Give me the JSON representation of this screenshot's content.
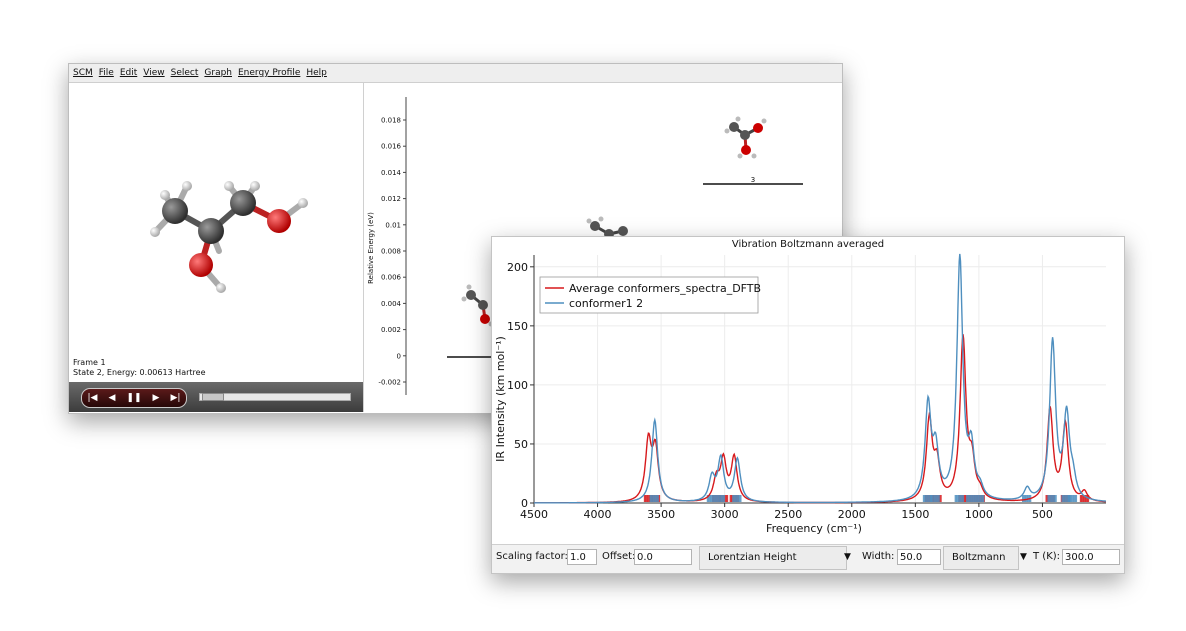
{
  "energy_window": {
    "menu": [
      "SCM",
      "File",
      "Edit",
      "View",
      "Select",
      "Graph",
      "Energy Profile",
      "Help"
    ],
    "frame_label": "Frame 1",
    "state_label": "State 2, Energy: 0.00613 Hartree",
    "player": {
      "first": "|◀",
      "prev": "◀",
      "pause": "❚❚",
      "next": "▶",
      "last": "▶|"
    },
    "profile": {
      "ylabel": "Relative Energy (eV)",
      "yticks": [
        "0.018",
        "0.016",
        "0.014",
        "0.012",
        "0.01",
        "0.008",
        "0.006",
        "0.004",
        "0.002",
        "0",
        "-0.002"
      ],
      "level_label_3": "3"
    }
  },
  "vib_window": {
    "bottombar": {
      "scaling_label": "Scaling factor:",
      "scaling_value": "1.0",
      "offset_label": "Offset:",
      "offset_value": "0.0",
      "lineshape": "Lorentzian Height",
      "width_label": "Width:",
      "width_value": "50.0",
      "averaging": "Boltzmann",
      "temp_label": "T (K):",
      "temp_value": "300.0"
    }
  },
  "chart_data": {
    "type": "line",
    "title": "Vibration Boltzmann averaged",
    "xlabel": "Frequency (cm⁻¹)",
    "ylabel": "IR Intensity (km mol⁻¹)",
    "xlim": [
      4500,
      0
    ],
    "ylim": [
      0,
      210
    ],
    "x_ticks": [
      4500,
      4000,
      3500,
      3000,
      2500,
      2000,
      1500,
      1000,
      500
    ],
    "y_ticks": [
      0,
      50,
      100,
      150,
      200
    ],
    "legend_position": "top-left",
    "grid": true,
    "series": [
      {
        "name": "Average conformers_spectra_DFTB",
        "color": "#d7191c",
        "peaks": [
          [
            3600,
            50
          ],
          [
            3545,
            43
          ],
          [
            3065,
            18
          ],
          [
            3010,
            34
          ],
          [
            2925,
            37
          ],
          [
            1390,
            68
          ],
          [
            1330,
            30
          ],
          [
            1125,
            137
          ],
          [
            1055,
            30
          ],
          [
            990,
            6
          ],
          [
            440,
            78
          ],
          [
            320,
            65
          ],
          [
            170,
            8
          ]
        ]
      },
      {
        "name": "conformer1 2",
        "color": "#4f8fbf",
        "peaks": [
          [
            3550,
            70
          ],
          [
            3100,
            20
          ],
          [
            3030,
            36
          ],
          [
            2900,
            36
          ],
          [
            1400,
            80
          ],
          [
            1340,
            40
          ],
          [
            1150,
            205
          ],
          [
            1060,
            40
          ],
          [
            990,
            8
          ],
          [
            620,
            10
          ],
          [
            420,
            135
          ],
          [
            310,
            70
          ],
          [
            260,
            15
          ]
        ]
      }
    ]
  }
}
